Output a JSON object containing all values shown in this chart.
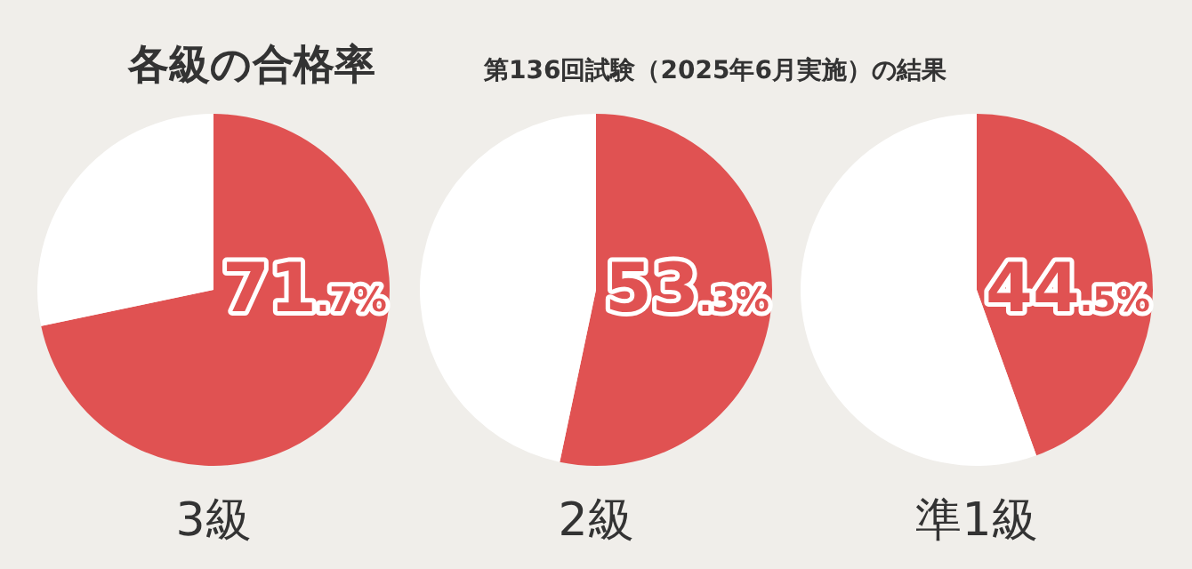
{
  "chart_data": [
    {
      "type": "pie",
      "title": "各級の合格率",
      "xlabel": "3級",
      "categories": [
        null,
        null
      ],
      "values": [
        71.7,
        28.3
      ],
      "colors": [
        "#e05252",
        "#ffffff"
      ],
      "value_labels": [
        "71.7%",
        null
      ]
    },
    {
      "type": "pie",
      "subtitle": "第136回試験（2025年6月実施）の結果",
      "xlabel": "2級",
      "categories": [
        null,
        null
      ],
      "values": [
        53.3,
        46.7
      ],
      "colors": [
        "#e05252",
        "#ffffff"
      ],
      "value_labels": [
        "53.3%",
        null
      ]
    },
    {
      "type": "pie",
      "xlabel": "準1級",
      "categories": [
        null,
        null
      ],
      "values": [
        44.5,
        55.5
      ],
      "colors": [
        "#e05252",
        "#ffffff"
      ],
      "value_labels": [
        "44.5%",
        null
      ]
    }
  ]
}
